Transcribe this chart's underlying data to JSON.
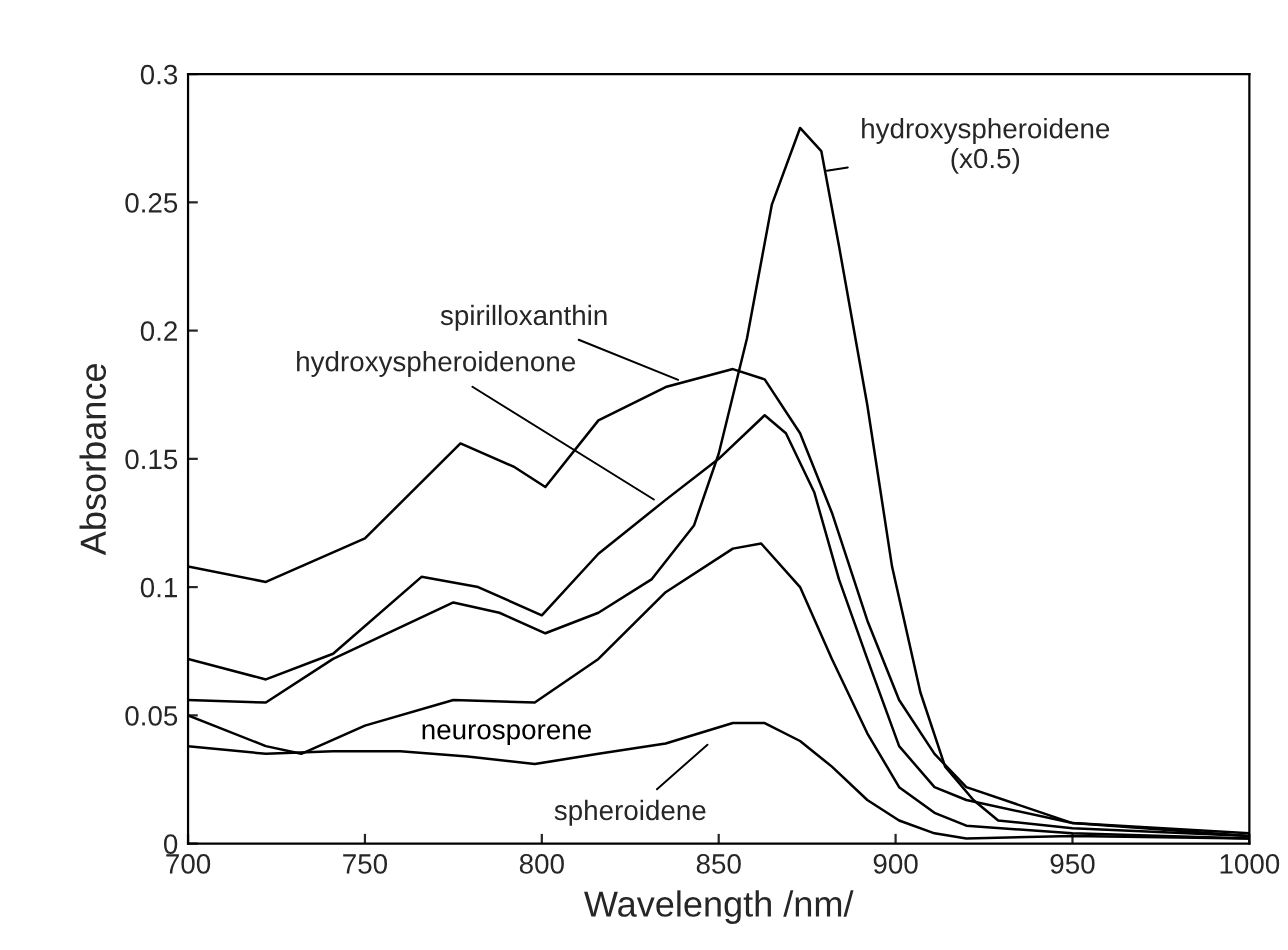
{
  "chart_data": {
    "type": "line",
    "xlabel": "Wavelength /nm/",
    "ylabel": "Absorbance",
    "xlim": [
      700,
      1000
    ],
    "xticks": [
      700,
      750,
      800,
      850,
      900,
      950,
      1000
    ],
    "ylim": [
      0,
      0.3
    ],
    "yticks": [
      0,
      0.05,
      0.1,
      0.15,
      0.2,
      0.25,
      0.3
    ],
    "grid": false,
    "legend": false,
    "marker": "none",
    "line_style": "solid",
    "series": [
      {
        "name": "spirilloxanthin",
        "color": "#000000",
        "x": [
          700,
          722,
          750,
          777,
          792,
          801,
          816,
          835,
          854,
          863,
          873,
          882,
          892,
          901,
          911,
          920,
          950,
          1000
        ],
        "values": [
          0.108,
          0.102,
          0.119,
          0.156,
          0.147,
          0.139,
          0.165,
          0.178,
          0.185,
          0.181,
          0.16,
          0.129,
          0.087,
          0.056,
          0.035,
          0.022,
          0.008,
          0.003
        ]
      },
      {
        "name": "hydroxyspheroidenone",
        "color": "#000000",
        "x": [
          700,
          722,
          741,
          766,
          782,
          800,
          816,
          835,
          850,
          863,
          869,
          877,
          884,
          892,
          901,
          911,
          920,
          950,
          1000
        ],
        "values": [
          0.072,
          0.064,
          0.074,
          0.104,
          0.1,
          0.089,
          0.113,
          0.134,
          0.15,
          0.167,
          0.16,
          0.137,
          0.103,
          0.072,
          0.038,
          0.022,
          0.017,
          0.008,
          0.004
        ]
      },
      {
        "name": "hydroxyspheroidene\n(x0.5)",
        "color": "#000000",
        "x": [
          700,
          722,
          741,
          775,
          788,
          801,
          816,
          831,
          843,
          850,
          858,
          865,
          873,
          879,
          884,
          892,
          899,
          907,
          914,
          922,
          929,
          950,
          1000
        ],
        "values": [
          0.056,
          0.055,
          0.072,
          0.094,
          0.09,
          0.082,
          0.09,
          0.103,
          0.124,
          0.152,
          0.197,
          0.249,
          0.279,
          0.27,
          0.233,
          0.171,
          0.108,
          0.059,
          0.03,
          0.017,
          0.009,
          0.006,
          0.003
        ]
      },
      {
        "name": "neurosporene",
        "color": "#000000",
        "x": [
          700,
          722,
          732,
          750,
          775,
          798,
          816,
          835,
          854,
          862,
          873,
          882,
          892,
          901,
          911,
          920,
          950,
          1000
        ],
        "values": [
          0.05,
          0.038,
          0.035,
          0.046,
          0.056,
          0.055,
          0.072,
          0.098,
          0.115,
          0.117,
          0.1,
          0.072,
          0.043,
          0.022,
          0.012,
          0.007,
          0.004,
          0.002
        ]
      },
      {
        "name": "spheroidene",
        "color": "#000000",
        "x": [
          700,
          722,
          741,
          760,
          779,
          798,
          816,
          835,
          854,
          863,
          873,
          882,
          892,
          901,
          911,
          920,
          950,
          1000
        ],
        "values": [
          0.038,
          0.035,
          0.036,
          0.036,
          0.034,
          0.031,
          0.035,
          0.039,
          0.047,
          0.047,
          0.04,
          0.03,
          0.017,
          0.009,
          0.004,
          0.002,
          0.003,
          0.002
        ]
      }
    ]
  }
}
